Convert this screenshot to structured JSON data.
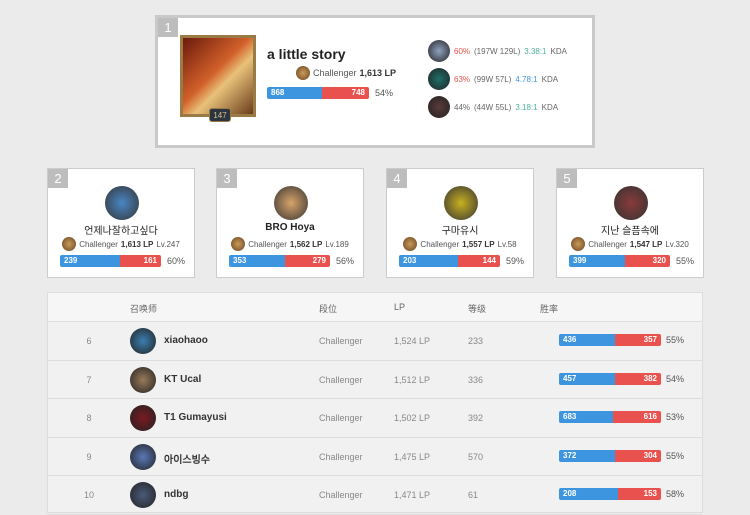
{
  "colors": {
    "win": "#3d95e0",
    "loss": "#e9514e",
    "kda_green": "#4fb49a",
    "kda_blue": "#3d95e0",
    "winrate_red": "#e9514e"
  },
  "top": {
    "rank": "1",
    "name": "a little story",
    "level": "147",
    "tier": "Challenger",
    "lp": "1,613 LP",
    "wins": "868",
    "losses": "748",
    "winrate": "54%",
    "champions": [
      {
        "winrate": "60%",
        "record": "(197W 129L)",
        "kda": "3.38:1",
        "kda_label": "KDA",
        "kda_color": "#4fb49a",
        "wr_color": "#e9514e",
        "icon": "#8fa1bf"
      },
      {
        "winrate": "63%",
        "record": "(99W 57L)",
        "kda": "4.78:1",
        "kda_label": "KDA",
        "kda_color": "#3d95e0",
        "wr_color": "#e9514e",
        "icon": "#1e6f6a"
      },
      {
        "winrate": "44%",
        "record": "(44W 55L)",
        "kda": "3.18:1",
        "kda_label": "KDA",
        "kda_color": "#4fb49a",
        "wr_color": "#666666",
        "icon": "#5a3a3a"
      }
    ]
  },
  "cards": [
    {
      "rank": "2",
      "name": "언제나잘하고싶다",
      "tier": "Challenger",
      "lp": "1,613 LP",
      "level": "Lv.247",
      "wins": "239",
      "losses": "161",
      "winrate": "60%",
      "avatar": "#4a86c5",
      "bold": false
    },
    {
      "rank": "3",
      "name": "BRO Hoya",
      "tier": "Challenger",
      "lp": "1,562 LP",
      "level": "Lv.189",
      "wins": "353",
      "losses": "279",
      "winrate": "56%",
      "avatar": "#d9a46a",
      "bold": true
    },
    {
      "rank": "4",
      "name": "구마유시",
      "tier": "Challenger",
      "lp": "1,557 LP",
      "level": "Lv.58",
      "wins": "203",
      "losses": "144",
      "winrate": "59%",
      "avatar": "#c9b020",
      "bold": false
    },
    {
      "rank": "5",
      "name": "지난 슬픔속에",
      "tier": "Challenger",
      "lp": "1,547 LP",
      "level": "Lv.320",
      "wins": "399",
      "losses": "320",
      "winrate": "55%",
      "avatar": "#8a3a3a",
      "bold": false
    }
  ],
  "table": {
    "headers": {
      "summoner": "召唤师",
      "tier": "段位",
      "lp": "LP",
      "level": "等级",
      "winrate": "胜率"
    },
    "rows": [
      {
        "rank": "6",
        "name": "xiaohaoo",
        "tier": "Challenger",
        "lp": "1,524 LP",
        "level": "233",
        "wins": "436",
        "losses": "357",
        "winrate": "55%",
        "avatar": "#3a7fb0"
      },
      {
        "rank": "7",
        "name": "KT Ucal",
        "tier": "Challenger",
        "lp": "1,512 LP",
        "level": "336",
        "wins": "457",
        "losses": "382",
        "winrate": "54%",
        "avatar": "#9a7a5a"
      },
      {
        "rank": "8",
        "name": "T1 Gumayusi",
        "tier": "Challenger",
        "lp": "1,502 LP",
        "level": "392",
        "wins": "683",
        "losses": "616",
        "winrate": "53%",
        "avatar": "#7a1a22"
      },
      {
        "rank": "9",
        "name": "아이스빙수",
        "tier": "Challenger",
        "lp": "1,475 LP",
        "level": "570",
        "wins": "372",
        "losses": "304",
        "winrate": "55%",
        "avatar": "#5a78b8"
      },
      {
        "rank": "10",
        "name": "ndbg",
        "tier": "Challenger",
        "lp": "1,471 LP",
        "level": "61",
        "wins": "208",
        "losses": "153",
        "winrate": "58%",
        "avatar": "#4a5a7a"
      }
    ]
  }
}
